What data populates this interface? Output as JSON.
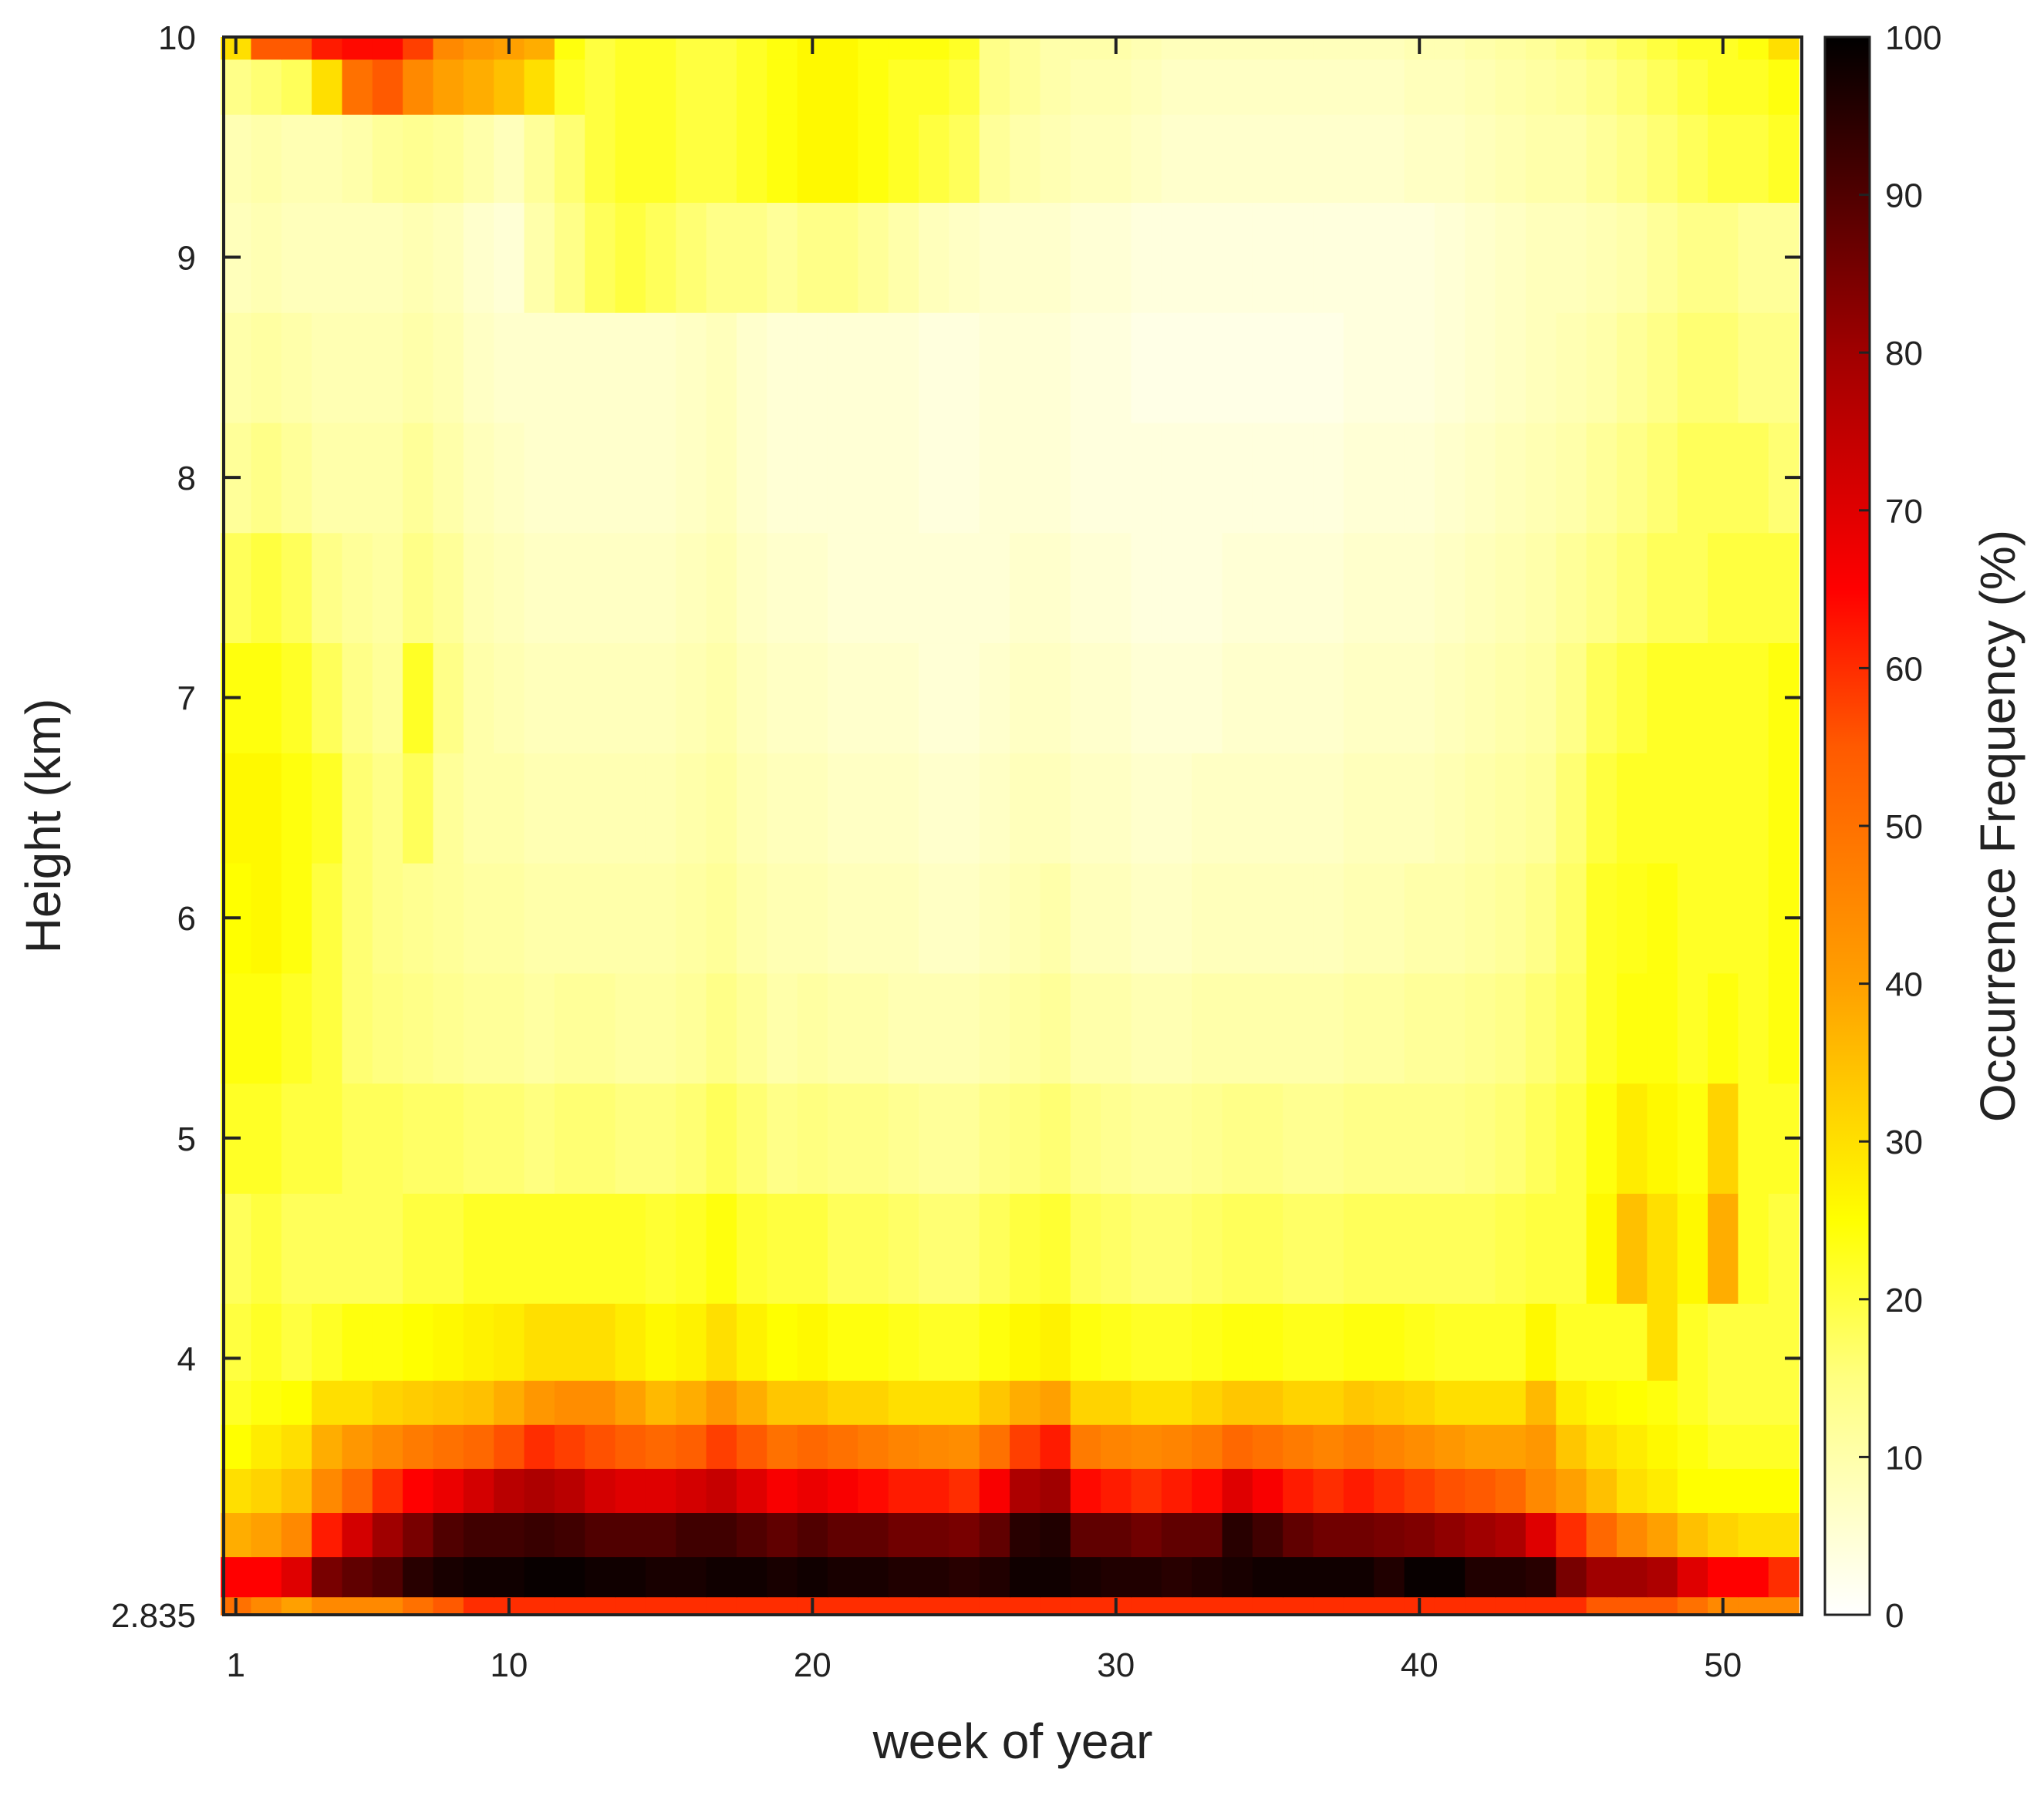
{
  "chart_data": {
    "type": "heatmap",
    "title": "",
    "xlabel": "week of year",
    "ylabel": "Height (km)",
    "colorbar_label": "Occurrence Frequency (%)",
    "colormap": "hot (reversed): white at 0, yellow ~25, orange ~40, red ~65, black at 100",
    "colormap_stops": [
      {
        "value": 0,
        "color": "#ffffff"
      },
      {
        "value": 15,
        "color": "#ffff80"
      },
      {
        "value": 25,
        "color": "#ffff00"
      },
      {
        "value": 40,
        "color": "#ffa000"
      },
      {
        "value": 55,
        "color": "#ff5a00"
      },
      {
        "value": 65,
        "color": "#ff0000"
      },
      {
        "value": 80,
        "color": "#a00000"
      },
      {
        "value": 100,
        "color": "#000000"
      }
    ],
    "xlim": [
      0.6,
      52.6
    ],
    "ylim": [
      2.835,
      10
    ],
    "clim": [
      0,
      100
    ],
    "x_ticks": [
      1,
      10,
      20,
      30,
      40,
      50
    ],
    "x_tick_labels": [
      "1",
      "10",
      "20",
      "30",
      "40",
      "50"
    ],
    "y_ticks": [
      2.835,
      4,
      5,
      6,
      7,
      8,
      9,
      10
    ],
    "y_tick_labels": [
      "2.835",
      "4",
      "5",
      "6",
      "7",
      "8",
      "9",
      "10"
    ],
    "colorbar_ticks": [
      0,
      10,
      20,
      30,
      40,
      50,
      60,
      70,
      80,
      90,
      100
    ],
    "colorbar_tick_labels": [
      "0",
      "10",
      "20",
      "30",
      "40",
      "50",
      "60",
      "70",
      "80",
      "90",
      "100"
    ],
    "weeks": [
      1,
      2,
      3,
      4,
      5,
      6,
      7,
      8,
      9,
      10,
      11,
      12,
      13,
      14,
      15,
      16,
      17,
      18,
      19,
      20,
      21,
      22,
      23,
      24,
      25,
      26,
      27,
      28,
      29,
      30,
      31,
      32,
      33,
      34,
      35,
      36,
      37,
      38,
      39,
      40,
      41,
      42,
      43,
      44,
      45,
      46,
      47,
      48,
      49,
      50,
      51,
      52
    ],
    "heights_km": [
      2.835,
      3.0,
      3.2,
      3.4,
      3.6,
      3.8,
      4.0,
      4.5,
      5.0,
      5.5,
      6.0,
      6.5,
      7.0,
      7.5,
      8.0,
      8.5,
      9.0,
      9.5,
      9.8,
      10.0
    ],
    "values": [
      [
        50,
        45,
        40,
        45,
        45,
        45,
        50,
        55,
        60,
        60,
        60,
        60,
        60,
        60,
        60,
        60,
        60,
        60,
        60,
        60,
        60,
        60,
        60,
        60,
        60,
        60,
        60,
        60,
        60,
        60,
        60,
        60,
        60,
        60,
        60,
        60,
        60,
        60,
        60,
        60,
        60,
        60,
        60,
        60,
        60,
        55,
        55,
        55,
        50,
        45,
        45,
        45
      ],
      [
        65,
        65,
        70,
        85,
        88,
        90,
        95,
        97,
        98,
        98,
        99,
        99,
        98,
        98,
        97,
        97,
        98,
        98,
        97,
        98,
        97,
        97,
        96,
        96,
        95,
        96,
        98,
        98,
        97,
        96,
        96,
        95,
        96,
        97,
        98,
        98,
        98,
        98,
        96,
        99,
        99,
        96,
        96,
        95,
        85,
        80,
        80,
        78,
        70,
        65,
        65,
        60
      ],
      [
        38,
        40,
        45,
        62,
        72,
        80,
        85,
        90,
        92,
        92,
        93,
        92,
        90,
        90,
        90,
        92,
        92,
        90,
        88,
        90,
        88,
        88,
        86,
        86,
        85,
        88,
        95,
        96,
        88,
        88,
        86,
        88,
        88,
        95,
        92,
        88,
        86,
        86,
        85,
        84,
        82,
        80,
        78,
        70,
        60,
        52,
        45,
        40,
        35,
        32,
        30,
        30
      ],
      [
        30,
        32,
        35,
        45,
        52,
        60,
        65,
        68,
        72,
        76,
        78,
        76,
        72,
        70,
        70,
        72,
        74,
        70,
        66,
        68,
        66,
        64,
        62,
        62,
        60,
        66,
        78,
        80,
        64,
        62,
        60,
        62,
        64,
        70,
        66,
        62,
        60,
        62,
        60,
        58,
        56,
        55,
        52,
        45,
        40,
        35,
        30,
        28,
        25,
        25,
        25,
        25
      ],
      [
        25,
        28,
        30,
        38,
        42,
        45,
        48,
        50,
        52,
        56,
        60,
        58,
        56,
        54,
        52,
        54,
        58,
        55,
        50,
        52,
        50,
        48,
        46,
        45,
        44,
        50,
        58,
        62,
        48,
        46,
        45,
        46,
        48,
        52,
        50,
        48,
        46,
        48,
        46,
        44,
        42,
        40,
        40,
        42,
        34,
        30,
        28,
        26,
        24,
        22,
        22,
        22
      ],
      [
        22,
        24,
        25,
        30,
        30,
        32,
        33,
        34,
        35,
        38,
        42,
        44,
        44,
        40,
        36,
        38,
        42,
        38,
        34,
        34,
        32,
        32,
        30,
        30,
        30,
        34,
        38,
        40,
        32,
        32,
        30,
        30,
        32,
        34,
        34,
        32,
        32,
        34,
        33,
        32,
        30,
        30,
        30,
        36,
        28,
        26,
        25,
        24,
        22,
        20,
        20,
        20
      ],
      [
        20,
        22,
        20,
        22,
        24,
        24,
        25,
        26,
        27,
        28,
        30,
        30,
        30,
        28,
        26,
        27,
        30,
        27,
        25,
        26,
        24,
        24,
        23,
        22,
        22,
        24,
        26,
        27,
        24,
        23,
        22,
        22,
        23,
        24,
        24,
        23,
        23,
        24,
        24,
        23,
        22,
        22,
        22,
        26,
        22,
        22,
        22,
        30,
        22,
        20,
        20,
        20
      ],
      [
        18,
        20,
        18,
        18,
        18,
        18,
        20,
        20,
        22,
        22,
        22,
        22,
        22,
        22,
        21,
        22,
        24,
        21,
        20,
        20,
        18,
        18,
        17,
        16,
        16,
        18,
        20,
        21,
        18,
        17,
        16,
        16,
        17,
        18,
        18,
        17,
        17,
        18,
        18,
        18,
        18,
        18,
        19,
        20,
        20,
        26,
        35,
        30,
        26,
        38,
        22,
        20
      ],
      [
        22,
        22,
        20,
        20,
        18,
        18,
        17,
        17,
        16,
        16,
        15,
        16,
        16,
        15,
        15,
        16,
        18,
        16,
        14,
        15,
        14,
        14,
        13,
        12,
        12,
        14,
        15,
        16,
        14,
        13,
        12,
        12,
        13,
        14,
        14,
        13,
        13,
        14,
        14,
        14,
        14,
        15,
        16,
        18,
        20,
        24,
        28,
        26,
        24,
        32,
        22,
        22
      ],
      [
        24,
        24,
        22,
        20,
        16,
        15,
        14,
        13,
        12,
        12,
        11,
        12,
        12,
        11,
        11,
        12,
        14,
        12,
        10,
        11,
        10,
        10,
        9,
        9,
        9,
        10,
        11,
        12,
        10,
        10,
        9,
        9,
        10,
        10,
        10,
        10,
        10,
        11,
        11,
        12,
        12,
        13,
        14,
        16,
        18,
        22,
        24,
        24,
        22,
        24,
        22,
        24
      ],
      [
        25,
        26,
        24,
        20,
        16,
        14,
        13,
        12,
        11,
        11,
        10,
        10,
        10,
        10,
        10,
        11,
        12,
        10,
        9,
        9,
        8,
        8,
        8,
        7,
        7,
        8,
        9,
        10,
        8,
        8,
        7,
        7,
        8,
        8,
        8,
        8,
        8,
        9,
        9,
        10,
        10,
        11,
        12,
        14,
        17,
        22,
        23,
        24,
        22,
        22,
        22,
        24
      ],
      [
        26,
        26,
        24,
        22,
        16,
        14,
        18,
        12,
        10,
        10,
        9,
        9,
        9,
        9,
        9,
        10,
        11,
        9,
        8,
        8,
        7,
        7,
        7,
        6,
        6,
        7,
        8,
        8,
        7,
        7,
        6,
        6,
        7,
        7,
        7,
        7,
        7,
        8,
        8,
        8,
        9,
        10,
        11,
        12,
        16,
        20,
        22,
        22,
        22,
        22,
        22,
        24
      ],
      [
        24,
        24,
        22,
        18,
        14,
        12,
        22,
        14,
        10,
        9,
        8,
        8,
        8,
        8,
        8,
        9,
        10,
        8,
        7,
        7,
        6,
        6,
        6,
        5,
        5,
        6,
        7,
        7,
        6,
        6,
        5,
        5,
        5,
        6,
        6,
        6,
        6,
        7,
        7,
        7,
        8,
        9,
        10,
        11,
        14,
        18,
        20,
        22,
        22,
        22,
        22,
        24
      ],
      [
        18,
        20,
        18,
        14,
        12,
        11,
        14,
        12,
        9,
        8,
        7,
        7,
        7,
        7,
        7,
        8,
        9,
        7,
        6,
        6,
        5,
        5,
        5,
        5,
        5,
        5,
        6,
        6,
        5,
        5,
        4,
        4,
        4,
        5,
        5,
        5,
        5,
        6,
        6,
        6,
        7,
        8,
        9,
        10,
        12,
        14,
        16,
        18,
        18,
        20,
        20,
        20
      ],
      [
        12,
        14,
        12,
        10,
        10,
        10,
        12,
        10,
        8,
        7,
        6,
        6,
        6,
        6,
        6,
        7,
        8,
        6,
        5,
        5,
        5,
        5,
        5,
        4,
        4,
        5,
        5,
        5,
        4,
        4,
        4,
        4,
        4,
        4,
        4,
        4,
        4,
        5,
        5,
        5,
        6,
        7,
        8,
        9,
        10,
        12,
        14,
        16,
        18,
        18,
        18,
        16
      ],
      [
        10,
        11,
        10,
        9,
        9,
        9,
        10,
        9,
        7,
        6,
        6,
        6,
        6,
        6,
        6,
        7,
        8,
        6,
        5,
        5,
        5,
        5,
        5,
        4,
        4,
        5,
        5,
        5,
        4,
        4,
        3,
        3,
        3,
        3,
        3,
        3,
        3,
        4,
        4,
        4,
        5,
        6,
        7,
        8,
        9,
        10,
        12,
        14,
        16,
        16,
        14,
        14
      ],
      [
        8,
        9,
        8,
        8,
        8,
        8,
        9,
        8,
        6,
        5,
        10,
        14,
        18,
        20,
        18,
        16,
        14,
        14,
        12,
        14,
        14,
        12,
        10,
        8,
        7,
        6,
        6,
        6,
        5,
        5,
        4,
        4,
        4,
        4,
        4,
        4,
        4,
        4,
        4,
        4,
        5,
        6,
        7,
        8,
        8,
        9,
        10,
        12,
        14,
        14,
        12,
        12
      ],
      [
        9,
        10,
        9,
        9,
        10,
        12,
        13,
        12,
        10,
        8,
        12,
        16,
        20,
        22,
        22,
        20,
        20,
        22,
        24,
        26,
        26,
        24,
        22,
        20,
        18,
        12,
        10,
        9,
        8,
        8,
        7,
        6,
        6,
        6,
        6,
        6,
        6,
        6,
        6,
        7,
        7,
        8,
        9,
        10,
        10,
        12,
        14,
        16,
        18,
        20,
        20,
        22
      ],
      [
        14,
        16,
        18,
        30,
        50,
        55,
        45,
        40,
        38,
        35,
        30,
        22,
        20,
        22,
        22,
        20,
        20,
        22,
        24,
        26,
        26,
        24,
        22,
        22,
        20,
        14,
        12,
        10,
        9,
        9,
        8,
        7,
        7,
        7,
        7,
        7,
        7,
        7,
        7,
        8,
        8,
        9,
        10,
        11,
        12,
        14,
        16,
        18,
        20,
        22,
        22,
        24
      ],
      [
        30,
        55,
        55,
        62,
        64,
        64,
        58,
        45,
        42,
        40,
        38,
        24,
        20,
        22,
        22,
        20,
        20,
        22,
        24,
        26,
        26,
        24,
        24,
        24,
        22,
        14,
        12,
        10,
        10,
        10,
        9,
        8,
        8,
        8,
        8,
        8,
        8,
        8,
        8,
        9,
        9,
        10,
        11,
        12,
        14,
        16,
        18,
        20,
        22,
        22,
        24,
        30
      ]
    ]
  }
}
